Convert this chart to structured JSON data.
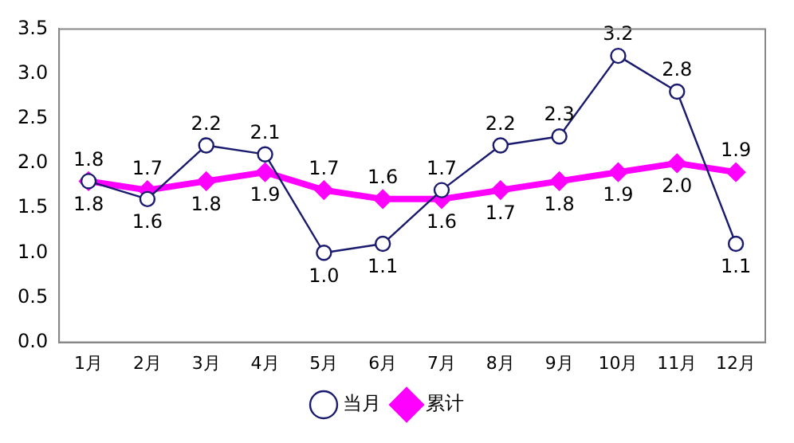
{
  "chart_data": {
    "type": "line",
    "categories": [
      "1月",
      "2月",
      "3月",
      "4月",
      "5月",
      "6月",
      "7月",
      "8月",
      "9月",
      "10月",
      "11月",
      "12月"
    ],
    "series": [
      {
        "name": "当月",
        "color": "#1a1a6e",
        "marker": "circle",
        "values": [
          1.8,
          1.6,
          2.2,
          2.1,
          1.0,
          1.1,
          1.7,
          2.2,
          2.3,
          3.2,
          2.8,
          1.1
        ],
        "value_labels": [
          "1.8",
          "1.6",
          "2.2",
          "2.1",
          "1.0",
          "1.1",
          "1.7",
          "2.2",
          "2.3",
          "3.2",
          "2.8",
          "1.1"
        ]
      },
      {
        "name": "累计",
        "color": "#ff00ff",
        "marker": "diamond",
        "values": [
          1.8,
          1.7,
          1.8,
          1.9,
          1.7,
          1.6,
          1.6,
          1.7,
          1.8,
          1.9,
          2.0,
          1.9
        ],
        "value_labels": [
          "1.8",
          "1.7",
          "1.8",
          "1.9",
          "1.7",
          "1.6",
          "1.6",
          "1.7",
          "1.8",
          "1.9",
          "2.0",
          "1.9"
        ]
      }
    ],
    "ylim": [
      0,
      3.5
    ],
    "yticks": [
      {
        "value": 0,
        "label": "0.0"
      },
      {
        "value": 0.5,
        "label": "0.5"
      },
      {
        "value": 1,
        "label": "1.0"
      },
      {
        "value": 1.5,
        "label": "1.5"
      },
      {
        "value": 2,
        "label": "2.0"
      },
      {
        "value": 2.5,
        "label": "2.5"
      },
      {
        "value": 3,
        "label": "3.0"
      },
      {
        "value": 3.5,
        "label": "3.5"
      }
    ],
    "grid": false,
    "legend": "bottom"
  }
}
